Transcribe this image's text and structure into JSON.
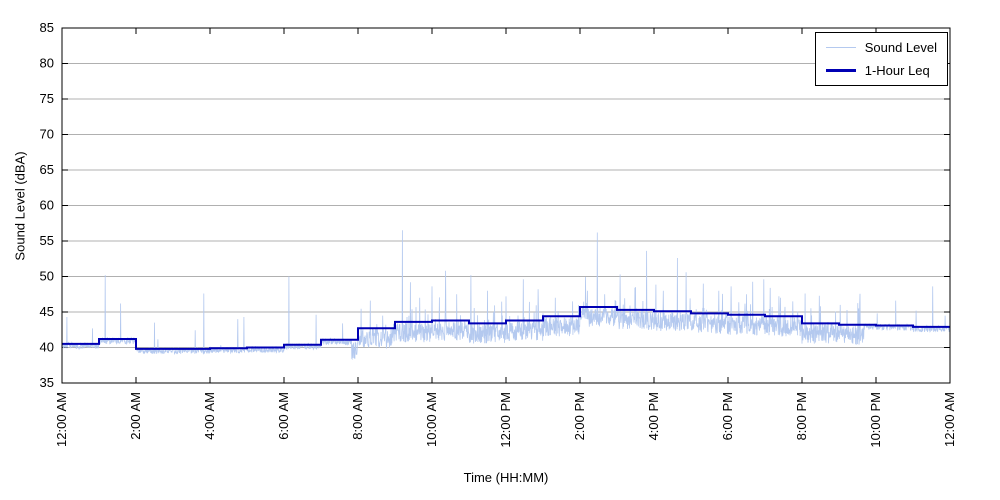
{
  "chart_data": {
    "type": "line",
    "title": "",
    "xlabel": "Time (HH:MM)",
    "ylabel": "Sound Level (dBA)",
    "ylim": [
      35,
      85
    ],
    "y_ticks": [
      35,
      40,
      45,
      50,
      55,
      60,
      65,
      70,
      75,
      80,
      85
    ],
    "x_tick_labels": [
      "12:00 AM",
      "2:00 AM",
      "4:00 AM",
      "6:00 AM",
      "8:00 AM",
      "10:00 AM",
      "12:00 PM",
      "2:00 PM",
      "4:00 PM",
      "6:00 PM",
      "8:00 PM",
      "10:00 PM",
      "12:00 AM"
    ],
    "x_tick_minutes": [
      0,
      120,
      240,
      360,
      480,
      600,
      720,
      840,
      960,
      1080,
      1200,
      1320,
      1440
    ],
    "grid": "horizontal",
    "grid_color": "#b0b0b0",
    "axis_color": "#000000",
    "legend": {
      "position": "top-right",
      "entries": [
        "Sound Level",
        "1-Hour Leq"
      ]
    },
    "series": [
      {
        "name": "Sound Level",
        "color": "#b4c9ef",
        "role": "raw-fast-samples",
        "description": "1-second sound level, noisy band roughly 39-45 dBA with frequent short spikes up to ~56 dBA during daytime"
      },
      {
        "name": "1-Hour Leq",
        "color": "#0000B4",
        "role": "hourly-step",
        "hours": [
          "12AM",
          "1AM",
          "2AM",
          "3AM",
          "4AM",
          "5AM",
          "6AM",
          "7AM",
          "8AM",
          "9AM",
          "10AM",
          "11AM",
          "12PM",
          "1PM",
          "2PM",
          "3PM",
          "4PM",
          "5PM",
          "6PM",
          "7PM",
          "8PM",
          "9PM",
          "10PM",
          "11PM"
        ],
        "values": [
          40.5,
          41.2,
          39.8,
          39.8,
          39.9,
          40.0,
          40.4,
          41.1,
          42.7,
          43.6,
          43.8,
          43.4,
          43.8,
          44.4,
          45.7,
          45.3,
          45.1,
          44.8,
          44.6,
          44.4,
          43.4,
          43.2,
          43.1,
          42.9
        ]
      }
    ],
    "spikes": [
      [
        8,
        44.3
      ],
      [
        70,
        50.2
      ],
      [
        95,
        46.2
      ],
      [
        150,
        43.5
      ],
      [
        230,
        47.6
      ],
      [
        285,
        44.0
      ],
      [
        368,
        50.0
      ],
      [
        412,
        44.6
      ],
      [
        455,
        43.4
      ],
      [
        500,
        46.6
      ],
      [
        520,
        44.5
      ],
      [
        552,
        56.5
      ],
      [
        565,
        49.2
      ],
      [
        580,
        47.0
      ],
      [
        600,
        48.6
      ],
      [
        622,
        50.8
      ],
      [
        640,
        47.5
      ],
      [
        663,
        50.2
      ],
      [
        690,
        48.0
      ],
      [
        720,
        47.2
      ],
      [
        748,
        49.6
      ],
      [
        772,
        48.2
      ],
      [
        800,
        47.0
      ],
      [
        828,
        46.5
      ],
      [
        852,
        48.0
      ],
      [
        868,
        56.2
      ],
      [
        880,
        47.5
      ],
      [
        905,
        50.3
      ],
      [
        930,
        48.5
      ],
      [
        948,
        53.6
      ],
      [
        975,
        48.0
      ],
      [
        998,
        52.6
      ],
      [
        1012,
        50.6
      ],
      [
        1040,
        49.0
      ],
      [
        1065,
        48.0
      ],
      [
        1085,
        48.6
      ],
      [
        1110,
        47.5
      ],
      [
        1138,
        49.6
      ],
      [
        1165,
        47.0
      ],
      [
        1185,
        46.5
      ],
      [
        1205,
        47.6
      ],
      [
        1230,
        45.8
      ],
      [
        1262,
        46.0
      ],
      [
        1292,
        45.5
      ],
      [
        1322,
        44.8
      ],
      [
        1352,
        46.6
      ],
      [
        1385,
        45.2
      ],
      [
        1412,
        48.6
      ],
      [
        1432,
        44.5
      ]
    ]
  }
}
